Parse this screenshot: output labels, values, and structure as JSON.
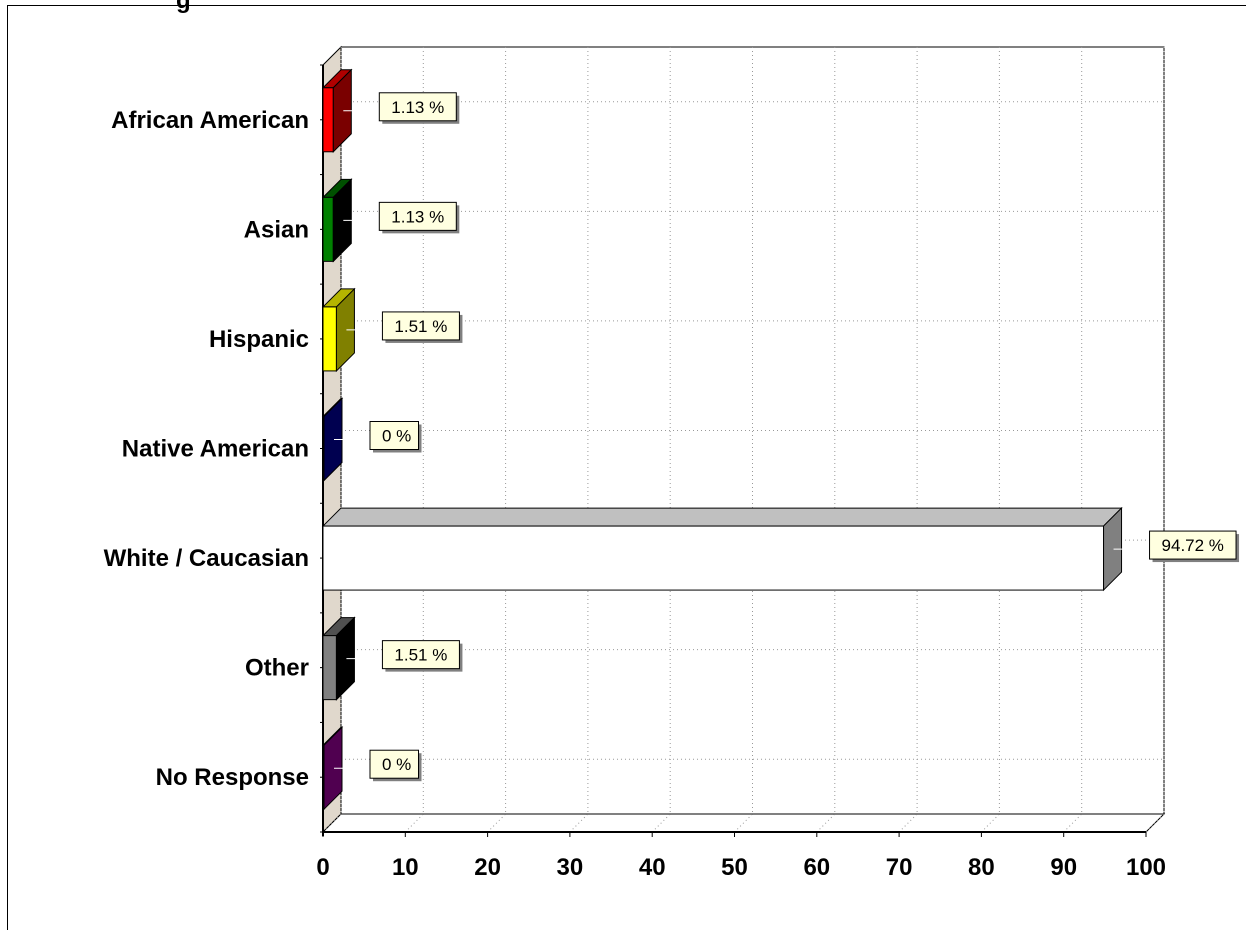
{
  "chart_data": {
    "type": "bar",
    "orientation": "horizontal",
    "title_fragment": "g",
    "categories": [
      "African American",
      "Asian",
      "Hispanic",
      "Native American",
      "White / Caucasian",
      "Other",
      "No Response"
    ],
    "values": [
      1.13,
      1.13,
      1.51,
      0,
      94.72,
      1.51,
      0
    ],
    "data_labels": [
      "1.13 %",
      "1.13 %",
      "1.51 %",
      "0 %",
      "94.72 %",
      "1.51 %",
      "0 %"
    ],
    "bar_colors": [
      {
        "front": "#ff0000",
        "top": "#b00000",
        "side": "#7a0000"
      },
      {
        "front": "#008000",
        "top": "#005000",
        "side": "#000000"
      },
      {
        "front": "#ffff00",
        "top": "#b5b500",
        "side": "#808000"
      },
      {
        "front": "#000080",
        "top": "#000060",
        "side": "#000050"
      },
      {
        "front": "#ffffff",
        "top": "#c0c0c0",
        "side": "#808080"
      },
      {
        "front": "#808080",
        "top": "#505050",
        "side": "#000000"
      },
      {
        "front": "#800080",
        "top": "#600060",
        "side": "#500050"
      }
    ],
    "xlim": [
      0,
      100
    ],
    "x_ticks": [
      0,
      10,
      20,
      30,
      40,
      50,
      60,
      70,
      80,
      90,
      100
    ],
    "x_tick_labels": [
      "0",
      "10",
      "20",
      "30",
      "40",
      "50",
      "60",
      "70",
      "80",
      "90",
      "100"
    ],
    "grid": true,
    "style": "3d",
    "wall_color": "#e0d8cc",
    "label_box_color": "#ffffe0"
  }
}
